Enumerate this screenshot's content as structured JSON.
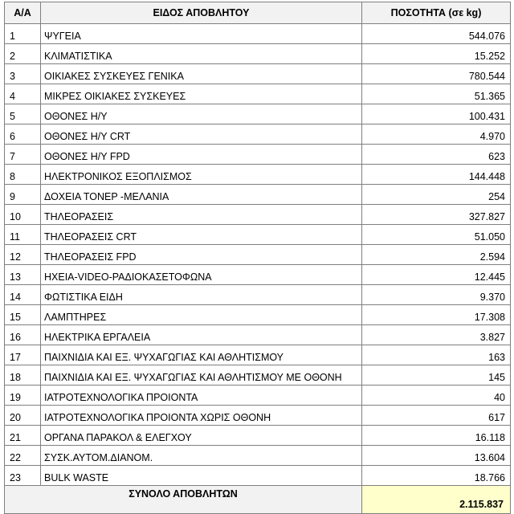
{
  "table": {
    "header": [
      "Α/Α",
      "ΕΙΔΟΣ ΑΠΟΒΛΗΤΟΥ",
      "ΠΟΣΟΤΗΤΑ (σε kg)"
    ],
    "rows": [
      [
        "1",
        "ΨΥΓΕΙΑ",
        "544.076"
      ],
      [
        "2",
        "ΚΛΙΜΑΤΙΣΤΙΚΑ",
        "15.252"
      ],
      [
        "3",
        "ΟΙΚΙΑΚΕΣ ΣΥΣΚΕΥΕΣ ΓΕΝΙΚΑ",
        "780.544"
      ],
      [
        "4",
        "ΜΙΚΡΕΣ ΟΙΚΙΑΚΕΣ ΣΥΣΚΕΥΕΣ",
        "51.365"
      ],
      [
        "5",
        "ΟΘΟΝΕΣ Η/Υ",
        "100.431"
      ],
      [
        "6",
        "ΟΘΟΝΕΣ Η/Υ CRT",
        "4.970"
      ],
      [
        "7",
        "ΟΘΟΝΕΣ Η/Υ FPD",
        "623"
      ],
      [
        "8",
        "ΗΛΕΚΤΡΟΝΙΚΟΣ ΕΞΟΠΛΙΣΜΟΣ",
        "144.448"
      ],
      [
        "9",
        "ΔΟΧΕΙΑ ΤΟΝΕΡ -ΜΕΛΑΝΙΑ",
        "254"
      ],
      [
        "10",
        "ΤΗΛΕΟΡΑΣΕΙΣ",
        "327.827"
      ],
      [
        "11",
        "ΤΗΛΕΟΡΑΣΕΙΣ CRT",
        "51.050"
      ],
      [
        "12",
        "ΤΗΛΕΟΡΑΣΕΙΣ FPD",
        "2.594"
      ],
      [
        "13",
        "ΗΧΕΙΑ-VIDEO-ΡΑΔΙΟΚΑΣΕΤΟΦΩΝΑ",
        "12.445"
      ],
      [
        "14",
        "ΦΩΤΙΣΤΙΚΑ ΕΙΔΗ",
        "9.370"
      ],
      [
        "15",
        "ΛΑΜΠΤΗΡΕΣ",
        "17.308"
      ],
      [
        "16",
        "ΗΛΕΚΤΡΙΚΑ ΕΡΓΑΛΕΙΑ",
        "3.827"
      ],
      [
        "17",
        "ΠΑΙΧΝΙΔΙΑ ΚΑΙ ΕΞ. ΨΥΧΑΓΩΓΙΑΣ ΚΑΙ ΑΘΛΗΤΙΣΜΟΥ",
        "163"
      ],
      [
        "18",
        "ΠΑΙΧΝΙΔΙΑ ΚΑΙ ΕΞ. ΨΥΧΑΓΩΓΙΑΣ ΚΑΙ ΑΘΛΗΤΙΣΜΟΥ ΜΕ ΟΘΟΝΗ",
        "145"
      ],
      [
        "19",
        "ΙΑΤΡΟΤΕΧΝΟΛΟΓΙΚΑ ΠΡΟΙΟΝΤΑ",
        "40"
      ],
      [
        "20",
        "ΙΑΤΡΟΤΕΧΝΟΛΟΓΙΚΑ ΠΡΟΙΟΝΤΑ ΧΩΡΙΣ ΟΘΟΝΗ",
        "617"
      ],
      [
        "21",
        "ΟΡΓΑΝΑ ΠΑΡΑΚΟΛ & ΕΛΕΓΧΟΥ",
        "16.118"
      ],
      [
        "22",
        "ΣΥΣΚ.ΑΥΤΟΜ.ΔΙΑΝΟΜ.",
        "13.604"
      ],
      [
        "23",
        "BULK WASTE",
        "18.766"
      ]
    ],
    "total": {
      "label": "ΣΥΝΟΛΟ ΑΠΟΒΛΗΤΩΝ",
      "value": "2.115.837"
    }
  }
}
